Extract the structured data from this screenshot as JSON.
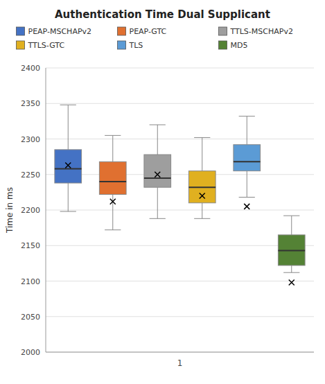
{
  "chart_data": {
    "type": "box",
    "title": "Authentication Time Dual Supplicant",
    "ylabel": "Time in ms",
    "categories": [
      "1"
    ],
    "ylim": [
      2000,
      2400
    ],
    "yticks": [
      2000,
      2050,
      2100,
      2150,
      2200,
      2250,
      2300,
      2350,
      2400
    ],
    "grid": true,
    "legend": "top",
    "series": [
      {
        "name": "PEAP-MSCHAPv2",
        "color": "#4472c4",
        "whislo": 2198,
        "q1": 2238,
        "med": 2258,
        "q3": 2285,
        "whishi": 2348,
        "mean": 2263
      },
      {
        "name": "PEAP-GTC",
        "color": "#e07030",
        "whislo": 2172,
        "q1": 2222,
        "med": 2240,
        "q3": 2268,
        "whishi": 2305,
        "mean": 2212
      },
      {
        "name": "TTLS-MSCHAPv2",
        "color": "#9e9e9e",
        "whislo": 2188,
        "q1": 2232,
        "med": 2245,
        "q3": 2278,
        "whishi": 2320,
        "mean": 2250
      },
      {
        "name": "TTLS-GTC",
        "color": "#e0b020",
        "whislo": 2188,
        "q1": 2210,
        "med": 2232,
        "q3": 2255,
        "whishi": 2302,
        "mean": 2220
      },
      {
        "name": "TLS",
        "color": "#5b9bd5",
        "whislo": 2218,
        "q1": 2255,
        "med": 2268,
        "q3": 2292,
        "whishi": 2332,
        "mean": 2205
      },
      {
        "name": "MD5",
        "color": "#548235",
        "whislo": 2112,
        "q1": 2122,
        "med": 2143,
        "q3": 2165,
        "whishi": 2192,
        "mean": 2098
      }
    ]
  }
}
